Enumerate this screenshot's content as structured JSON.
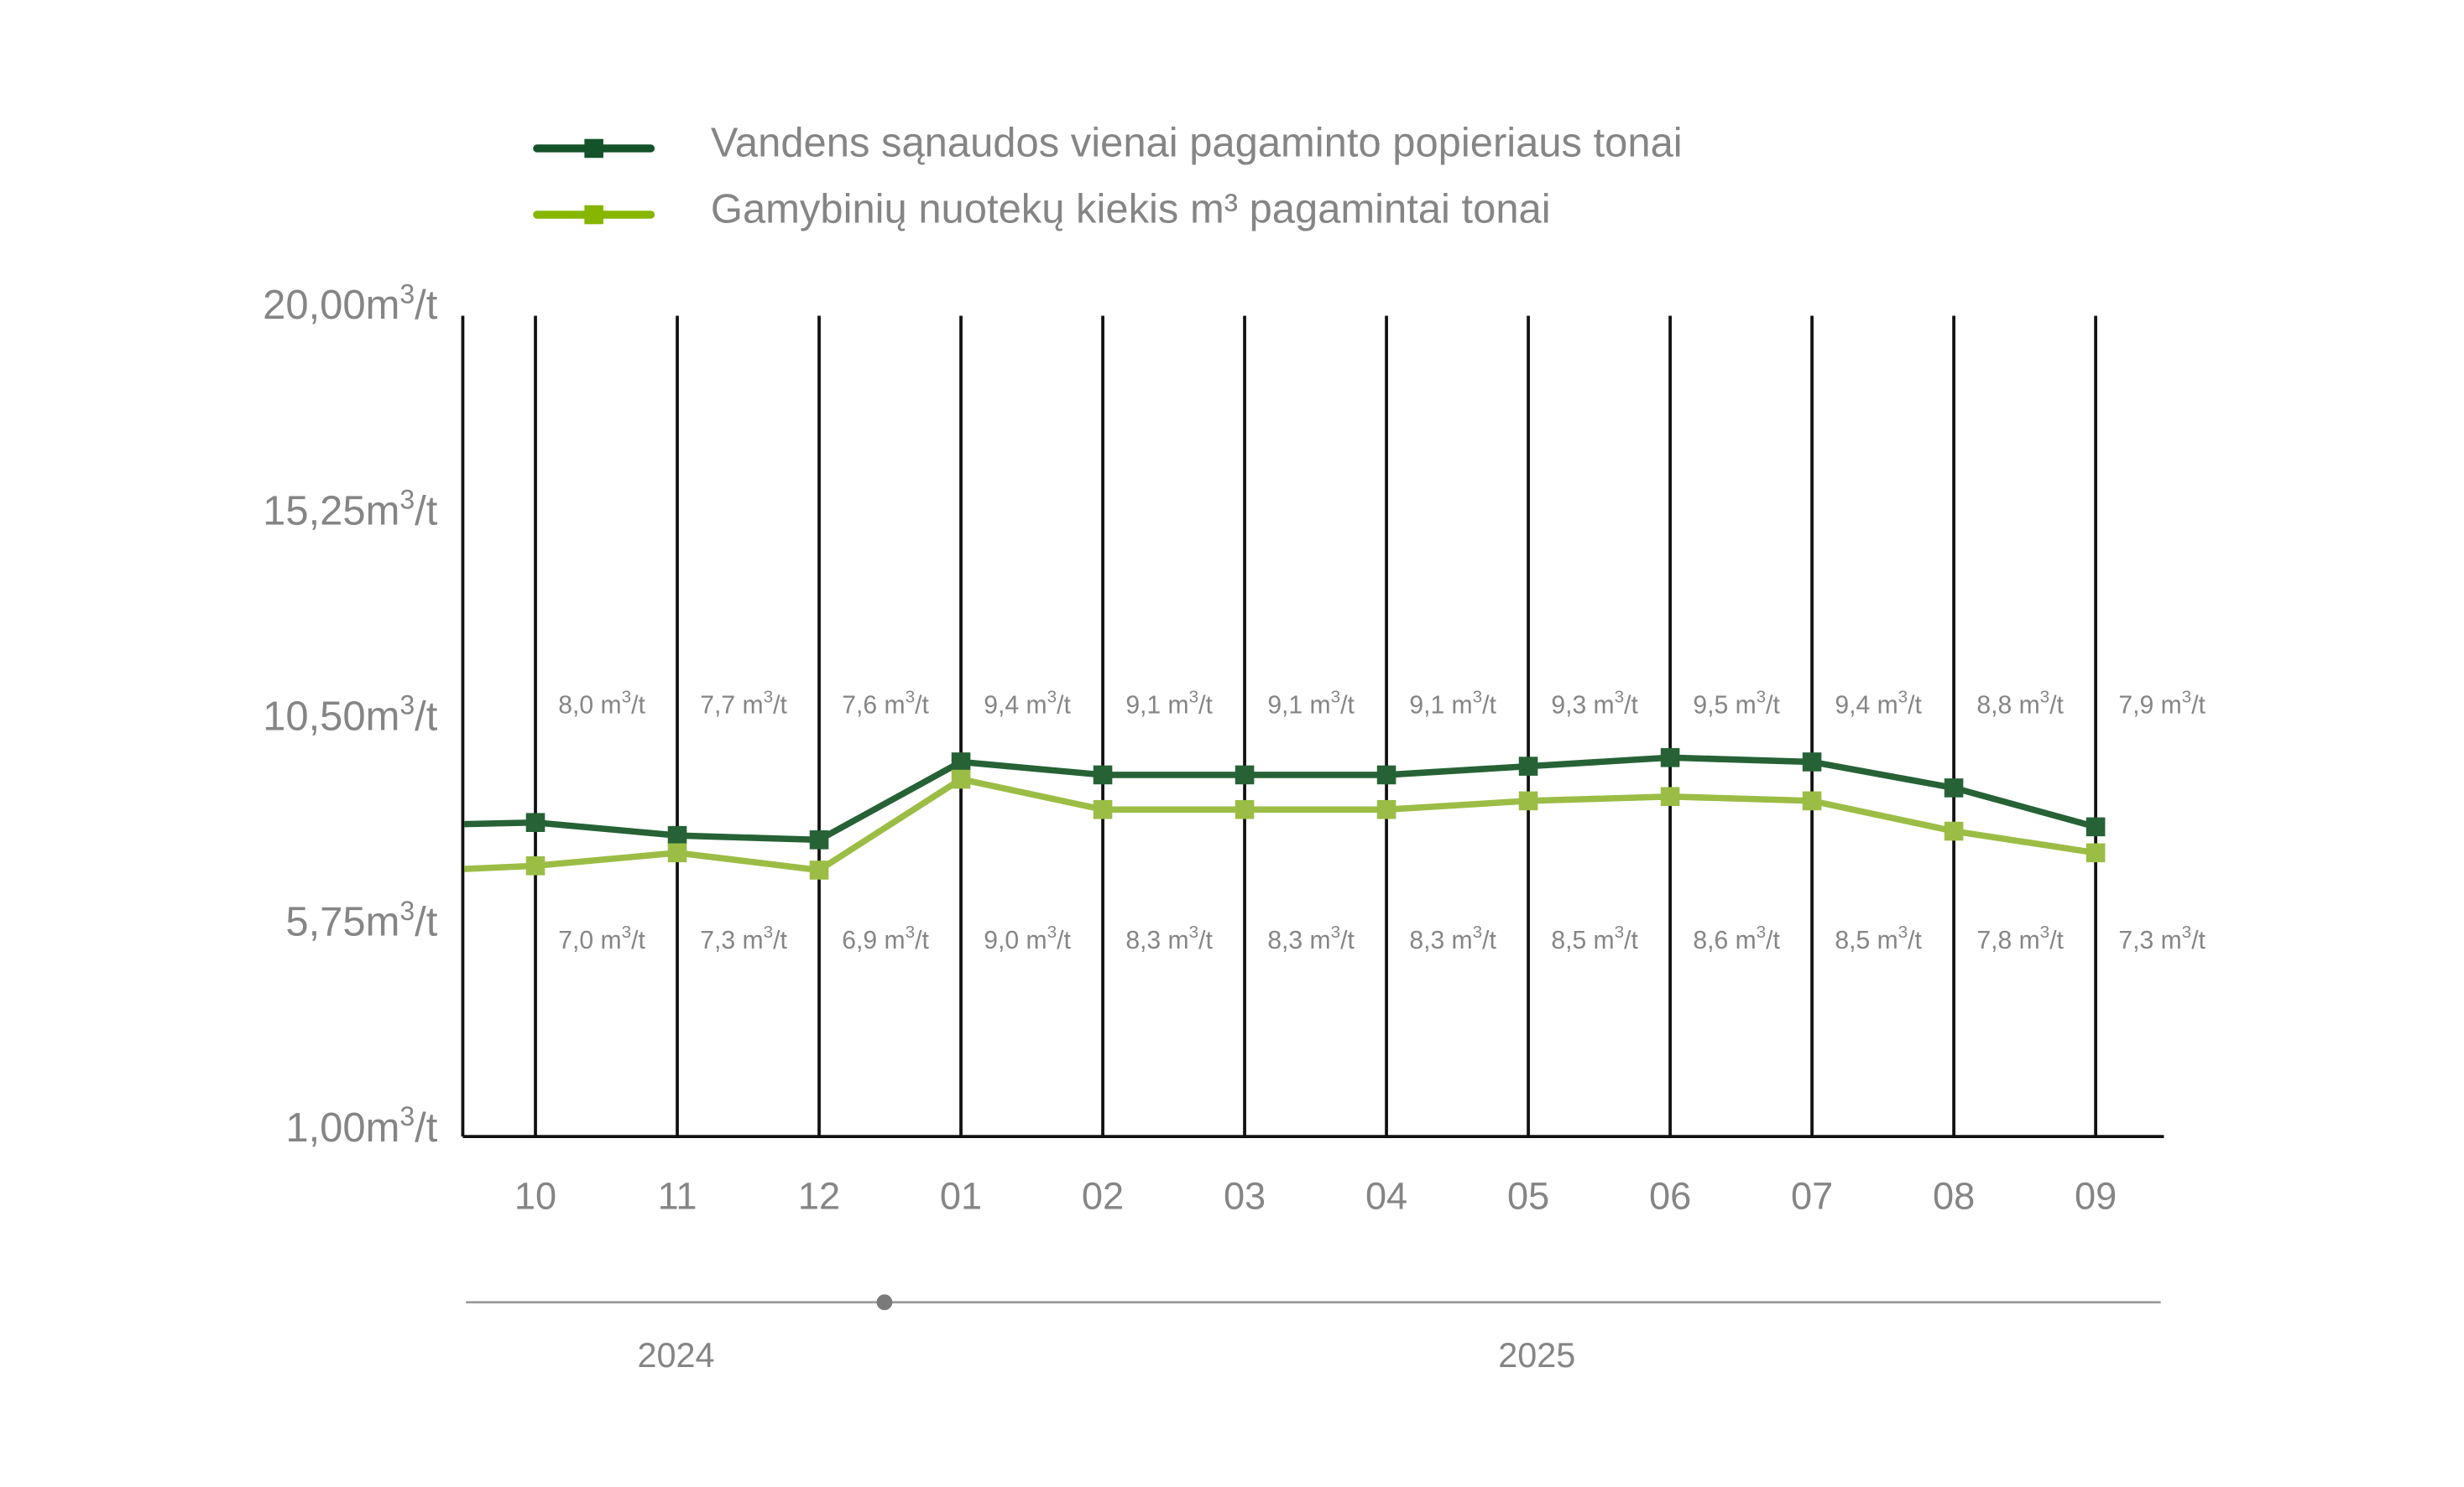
{
  "chart_data": {
    "type": "line",
    "categories": [
      "10",
      "11",
      "12",
      "01",
      "02",
      "03",
      "04",
      "05",
      "06",
      "07",
      "08",
      "09"
    ],
    "year_groups": [
      "2024",
      "2025"
    ],
    "y_ticks": [
      "20,00m³/t",
      "15,25m³/t",
      "10,50m³/t",
      "5,75m³/t",
      "1,00m³/t"
    ],
    "ylim": [
      1,
      20
    ],
    "unit": "m³/t",
    "series": [
      {
        "name": "Vandens sąnaudos vienai pagaminto popieriaus tonai",
        "color": "#266236",
        "legend_color": "#14532a",
        "values": [
          8.0,
          7.7,
          7.6,
          9.4,
          9.1,
          9.1,
          9.1,
          9.3,
          9.5,
          9.4,
          8.8,
          7.9
        ]
      },
      {
        "name": "Gamybinių nuotekų kiekis m³ pagamintai tonai",
        "color": "#9bbd45",
        "legend_color": "#86b600",
        "values": [
          7.0,
          7.3,
          6.9,
          9.0,
          8.3,
          8.3,
          8.3,
          8.5,
          8.6,
          8.5,
          7.8,
          7.3
        ]
      }
    ],
    "legend_position": "top",
    "grid": "vertical"
  }
}
